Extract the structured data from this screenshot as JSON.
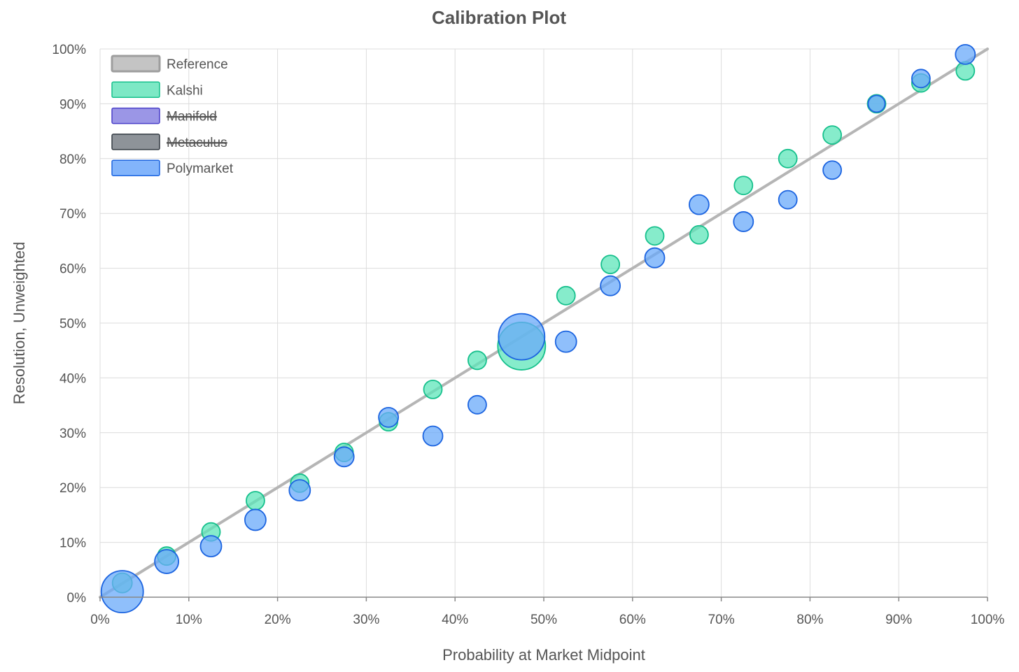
{
  "chart_data": {
    "type": "scatter",
    "title": "Calibration Plot",
    "xlabel": "Probability at Market Midpoint",
    "ylabel": "Resolution, Unweighted",
    "xlim": [
      0,
      100
    ],
    "ylim": [
      0,
      100
    ],
    "x_ticks": [
      "0%",
      "10%",
      "20%",
      "30%",
      "40%",
      "50%",
      "60%",
      "70%",
      "80%",
      "90%",
      "100%"
    ],
    "y_ticks": [
      "0%",
      "10%",
      "20%",
      "30%",
      "40%",
      "50%",
      "60%",
      "70%",
      "80%",
      "90%",
      "100%"
    ],
    "grid": true,
    "legend_position": "top-left",
    "legend": [
      {
        "name": "Reference",
        "fill": "#c4c4c4",
        "stroke": "#9e9e9e",
        "hidden": false
      },
      {
        "name": "Kalshi",
        "fill": "#7de8c5",
        "stroke": "#16c08c",
        "hidden": false
      },
      {
        "name": "Manifold",
        "fill": "#9b96e6",
        "stroke": "#4a3fc9",
        "hidden": true
      },
      {
        "name": "Metaculus",
        "fill": "#8e9399",
        "stroke": "#333a42",
        "hidden": true
      },
      {
        "name": "Polymarket",
        "fill": "#82b4fb",
        "stroke": "#1c64e0",
        "hidden": false
      }
    ],
    "reference": {
      "name": "Reference",
      "color": "#b5b5b5",
      "points": [
        [
          0,
          0
        ],
        [
          100,
          100
        ]
      ]
    },
    "series": [
      {
        "name": "Kalshi",
        "fill": "#5ee6b9",
        "stroke": "#16c08c",
        "points": [
          {
            "x": 2.5,
            "y": 2.6,
            "r": 14
          },
          {
            "x": 7.5,
            "y": 7.5,
            "r": 13
          },
          {
            "x": 12.5,
            "y": 11.9,
            "r": 13
          },
          {
            "x": 17.5,
            "y": 17.6,
            "r": 13
          },
          {
            "x": 22.5,
            "y": 20.8,
            "r": 13
          },
          {
            "x": 27.5,
            "y": 26.4,
            "r": 13
          },
          {
            "x": 32.5,
            "y": 32.0,
            "r": 13
          },
          {
            "x": 37.5,
            "y": 37.9,
            "r": 13
          },
          {
            "x": 42.5,
            "y": 43.2,
            "r": 13
          },
          {
            "x": 47.5,
            "y": 45.8,
            "r": 34
          },
          {
            "x": 52.5,
            "y": 55.0,
            "r": 13
          },
          {
            "x": 57.5,
            "y": 60.7,
            "r": 13
          },
          {
            "x": 62.5,
            "y": 65.9,
            "r": 13
          },
          {
            "x": 67.5,
            "y": 66.1,
            "r": 13
          },
          {
            "x": 72.5,
            "y": 75.1,
            "r": 13
          },
          {
            "x": 77.5,
            "y": 80.0,
            "r": 13
          },
          {
            "x": 82.5,
            "y": 84.3,
            "r": 13
          },
          {
            "x": 87.5,
            "y": 90.0,
            "r": 13
          },
          {
            "x": 92.5,
            "y": 93.8,
            "r": 13
          },
          {
            "x": 97.5,
            "y": 96.0,
            "r": 13
          }
        ]
      },
      {
        "name": "Polymarket",
        "fill": "#6aa9fa",
        "stroke": "#1c64e0",
        "points": [
          {
            "x": 2.5,
            "y": 1.0,
            "r": 30
          },
          {
            "x": 7.5,
            "y": 6.5,
            "r": 17
          },
          {
            "x": 12.5,
            "y": 9.3,
            "r": 15
          },
          {
            "x": 17.5,
            "y": 14.1,
            "r": 15
          },
          {
            "x": 22.5,
            "y": 19.5,
            "r": 15
          },
          {
            "x": 27.5,
            "y": 25.6,
            "r": 14
          },
          {
            "x": 32.5,
            "y": 32.8,
            "r": 14
          },
          {
            "x": 37.5,
            "y": 29.4,
            "r": 14
          },
          {
            "x": 42.5,
            "y": 35.1,
            "r": 13
          },
          {
            "x": 47.5,
            "y": 47.5,
            "r": 33
          },
          {
            "x": 52.5,
            "y": 46.6,
            "r": 15
          },
          {
            "x": 57.5,
            "y": 56.8,
            "r": 14
          },
          {
            "x": 62.5,
            "y": 61.9,
            "r": 14
          },
          {
            "x": 67.5,
            "y": 71.6,
            "r": 14
          },
          {
            "x": 72.5,
            "y": 68.5,
            "r": 14
          },
          {
            "x": 77.5,
            "y": 72.5,
            "r": 13
          },
          {
            "x": 82.5,
            "y": 77.9,
            "r": 13
          },
          {
            "x": 87.5,
            "y": 90.0,
            "r": 12
          },
          {
            "x": 92.5,
            "y": 94.6,
            "r": 13
          },
          {
            "x": 97.5,
            "y": 99.0,
            "r": 14
          }
        ]
      }
    ]
  }
}
